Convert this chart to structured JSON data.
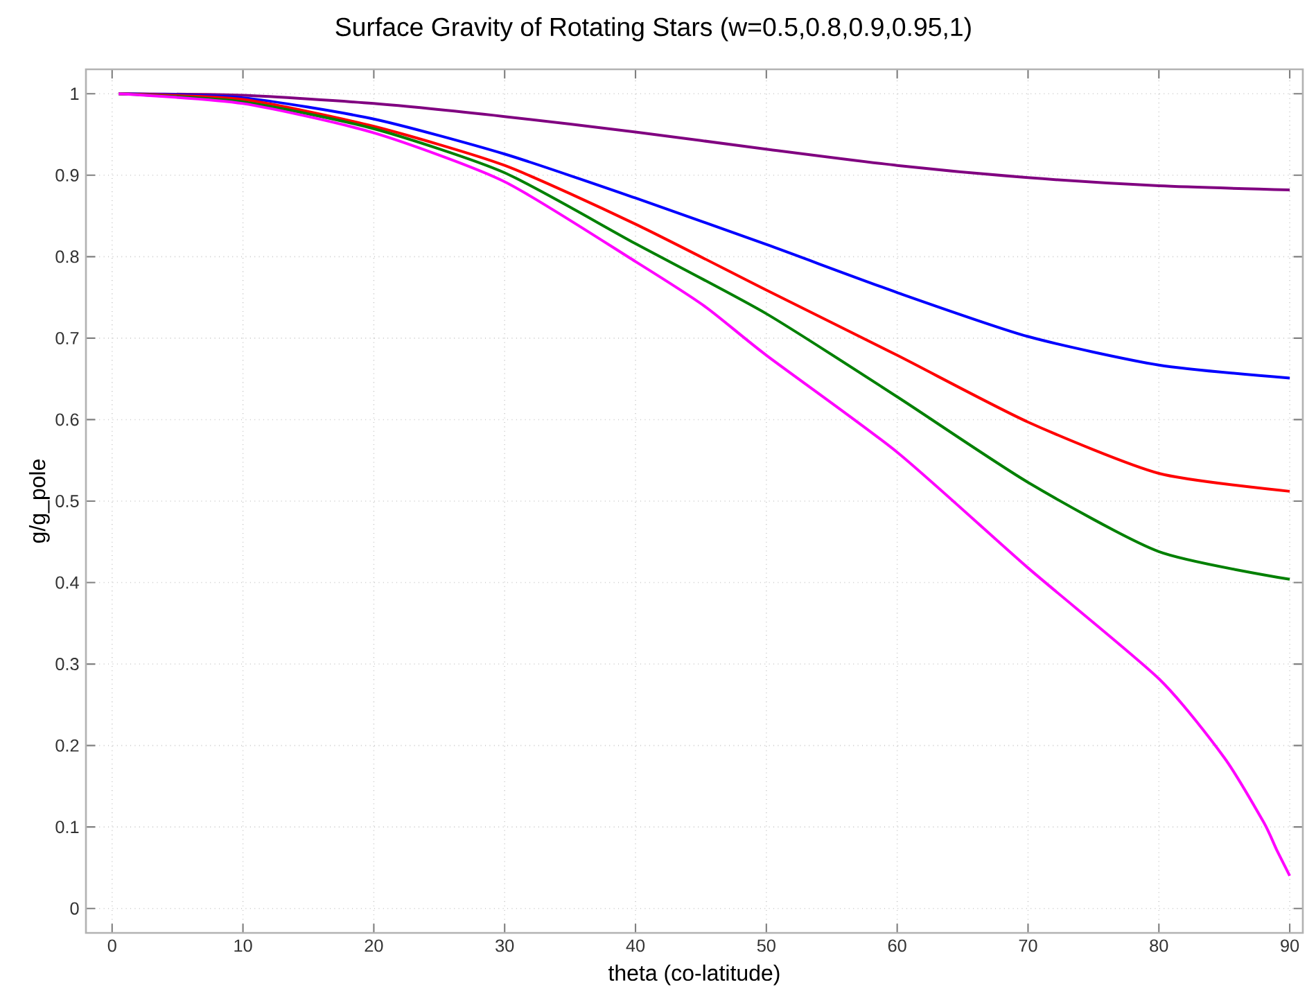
{
  "chart_data": {
    "type": "line",
    "title": "Surface Gravity of Rotating Stars (w=0.5,0.8,0.9,0.95,1)",
    "xlabel": "theta (co-latitude)",
    "ylabel": "g/g_pole",
    "xlim": [
      -2,
      91
    ],
    "ylim": [
      -0.03,
      1.03
    ],
    "xticks": [
      0,
      10,
      20,
      30,
      40,
      50,
      60,
      70,
      80,
      90
    ],
    "yticks": [
      0,
      0.1,
      0.2,
      0.3,
      0.4,
      0.5,
      0.6,
      0.7,
      0.8,
      0.9,
      1
    ],
    "grid": true,
    "series": [
      {
        "color": "#800080",
        "x": [
          0.5,
          10,
          20,
          30,
          40,
          50,
          60,
          70,
          80,
          90
        ],
        "values": [
          1,
          0.998,
          0.988,
          0.972,
          0.953,
          0.932,
          0.912,
          0.897,
          0.887,
          0.882
        ]
      },
      {
        "color": "#0000ff",
        "x": [
          0.5,
          10,
          20,
          30,
          40,
          50,
          60,
          70,
          80,
          90
        ],
        "values": [
          1,
          0.995,
          0.969,
          0.926,
          0.872,
          0.815,
          0.756,
          0.702,
          0.667,
          0.651
        ]
      },
      {
        "color": "#ff0000",
        "x": [
          0.5,
          10,
          20,
          30,
          40,
          50,
          60,
          70,
          80,
          90
        ],
        "values": [
          1,
          0.993,
          0.96,
          0.912,
          0.84,
          0.759,
          0.679,
          0.597,
          0.534,
          0.512
        ]
      },
      {
        "color": "#008000",
        "x": [
          0.5,
          10,
          20,
          30,
          40,
          50,
          60,
          70,
          80,
          90
        ],
        "values": [
          1,
          0.99,
          0.957,
          0.903,
          0.816,
          0.73,
          0.628,
          0.523,
          0.438,
          0.404
        ]
      },
      {
        "color": "#ff00ff",
        "x": [
          0.5,
          10,
          20,
          30,
          40,
          45.3,
          50,
          60,
          70,
          80,
          85,
          88,
          89,
          90
        ],
        "values": [
          1,
          0.988,
          0.952,
          0.892,
          0.794,
          0.739,
          0.679,
          0.56,
          0.418,
          0.282,
          0.185,
          0.106,
          0.072,
          0.04
        ]
      }
    ]
  }
}
